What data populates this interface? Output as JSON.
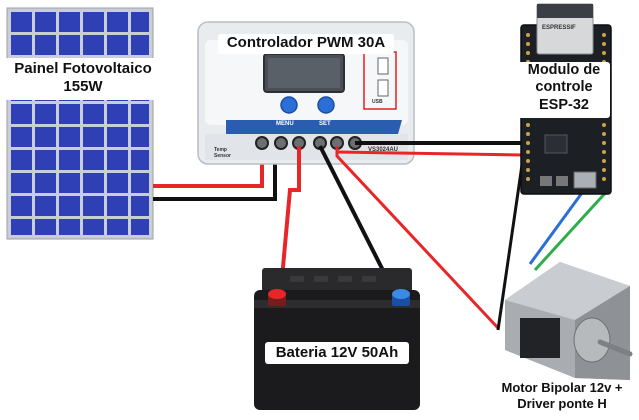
{
  "solar_panel": {
    "label_line1": "Painel Fotovoltaico",
    "label_line2": "155W"
  },
  "controller": {
    "title": "Controlador PWM 30A",
    "button_menu": "MENU",
    "button_set": "SET",
    "model": "VS3024AU",
    "usb_label": "USB",
    "temp_label": "Temp Sensor"
  },
  "module": {
    "label_line1": "Modulo de",
    "label_line2": "controle",
    "label_line3": "ESP-32",
    "chip_brand": "ESPRESSIF"
  },
  "battery": {
    "label": "Bateria 12V 50Ah"
  },
  "motor": {
    "label_line1": "Motor Bipolar 12v +",
    "label_line2": "Driver ponte H"
  },
  "colors": {
    "wire_red": "#e8262a",
    "wire_black": "#111111",
    "wire_blue": "#2a6fd6",
    "wire_green": "#2eae4a",
    "panel_cell": "#2f3fb5",
    "controller_accent": "#2a5db0"
  }
}
